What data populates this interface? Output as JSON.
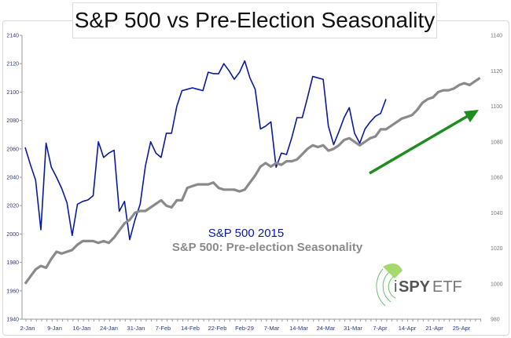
{
  "chart_data": {
    "type": "line",
    "title": "S&P 500 vs Pre-Election Seasonality",
    "x_tick_labels": [
      "2-Jan",
      "9-Jan",
      "16-Jan",
      "24-Jan",
      "31-Jan",
      "7-Feb",
      "14-Feb",
      "22-Feb",
      "Feb-29",
      "7-Mar",
      "14-Mar",
      "24-Mar",
      "31-Mar",
      "7-Apr",
      "14-Apr",
      "21-Apr",
      "25-Apr"
    ],
    "y_left": {
      "range": [
        1940,
        2140
      ],
      "ticks": [
        1940,
        1960,
        1980,
        2000,
        2020,
        2040,
        2060,
        2080,
        2100,
        2120,
        2140
      ]
    },
    "y_right": {
      "range": [
        980,
        1140
      ],
      "ticks": [
        980,
        1000,
        1020,
        1040,
        1060,
        1080,
        1100,
        1120,
        1140
      ]
    },
    "grid": false,
    "series": [
      {
        "name": "S&P 500 2015",
        "axis": "left",
        "color": "#0a1a9c",
        "values": [
          2061,
          2049,
          2038,
          2003,
          2064,
          2047,
          2040,
          2032,
          2022,
          1999,
          2021,
          2023,
          2024,
          2027,
          2065,
          2054,
          2057,
          2059,
          2016,
          2023,
          1996,
          2010,
          2021,
          2048,
          2065,
          2057,
          2054,
          2071,
          2071,
          2090,
          2101,
          2102,
          2103,
          2102,
          2101,
          2114,
          2113,
          2113,
          2120,
          2115,
          2109,
          2114,
          2122,
          2110,
          2102,
          2074,
          2076,
          2079,
          2047,
          2057,
          2056,
          2068,
          2082,
          2082,
          2096,
          2111,
          2110,
          2109,
          2076,
          2063,
          2072,
          2082,
          2089,
          2071,
          2064,
          2074,
          2079,
          2083,
          2085,
          2095
        ]
      },
      {
        "name": "S&P 500: Pre-election Seasonality",
        "axis": "right",
        "color": "#8a8a8a",
        "values": [
          1000,
          1004,
          1008,
          1010,
          1009,
          1014,
          1018,
          1017,
          1018,
          1019,
          1022,
          1024,
          1024,
          1024,
          1023,
          1024,
          1023,
          1026,
          1030,
          1034,
          1036,
          1040,
          1041,
          1041,
          1043,
          1045,
          1047,
          1044,
          1043,
          1047,
          1047,
          1054,
          1055,
          1056,
          1056,
          1056,
          1057,
          1054,
          1053,
          1053,
          1053,
          1052,
          1053,
          1057,
          1061,
          1066,
          1068,
          1066,
          1068,
          1067,
          1069,
          1069,
          1070,
          1073,
          1076,
          1078,
          1077,
          1078,
          1075,
          1076,
          1078,
          1081,
          1082,
          1080,
          1078,
          1080,
          1082,
          1083,
          1087,
          1087,
          1089,
          1091,
          1093,
          1094,
          1095,
          1098,
          1102,
          1104,
          1105,
          1108,
          1109,
          1109,
          1110,
          1112,
          1113,
          1112,
          1114,
          1116
        ]
      }
    ],
    "annotations": {
      "trend_arrow_color": "#1e8c1e"
    },
    "logo": "iSPYETF"
  }
}
